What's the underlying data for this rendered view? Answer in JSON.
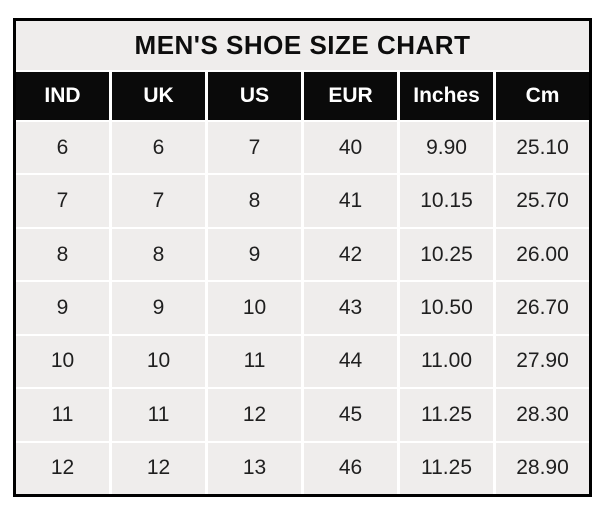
{
  "title": "MEN'S SHOE SIZE CHART",
  "colors": {
    "page_background": "#ffffff",
    "outer_border": "#000000",
    "title_background": "#efedec",
    "header_background": "#0a0a0a",
    "header_text": "#ffffff",
    "cell_background": "#efedec",
    "cell_text": "#1f1f1f",
    "gutter": "#ffffff"
  },
  "chart_data": {
    "type": "table",
    "title": "MEN'S SHOE SIZE CHART",
    "headers": [
      "IND",
      "UK",
      "US",
      "EUR",
      "Inches",
      "Cm"
    ],
    "rows": [
      [
        "6",
        "6",
        "7",
        "40",
        "9.90",
        "25.10"
      ],
      [
        "7",
        "7",
        "8",
        "41",
        "10.15",
        "25.70"
      ],
      [
        "8",
        "8",
        "9",
        "42",
        "10.25",
        "26.00"
      ],
      [
        "9",
        "9",
        "10",
        "43",
        "10.50",
        "26.70"
      ],
      [
        "10",
        "10",
        "11",
        "44",
        "11.00",
        "27.90"
      ],
      [
        "11",
        "11",
        "12",
        "45",
        "11.25",
        "28.30"
      ],
      [
        "12",
        "12",
        "13",
        "46",
        "11.25",
        "28.90"
      ]
    ]
  }
}
